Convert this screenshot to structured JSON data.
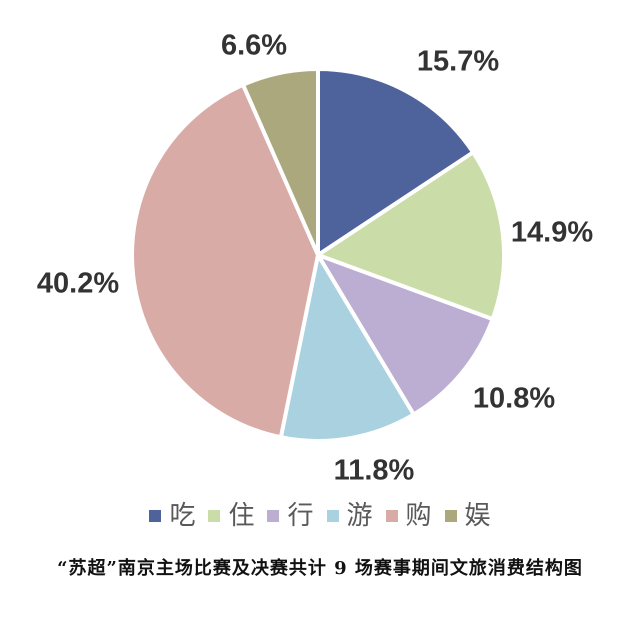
{
  "chart_data": {
    "type": "pie",
    "title": "“苏超”南京主场比赛及决赛共计 9 场赛事期间文旅消费结构图",
    "categories": [
      "吃",
      "住",
      "行",
      "游",
      "购",
      "娱"
    ],
    "values": [
      15.7,
      14.9,
      10.8,
      11.8,
      40.2,
      6.6
    ],
    "labels": [
      "15.7%",
      "14.9%",
      "10.8%",
      "11.8%",
      "40.2%",
      "6.6%"
    ],
    "colors": [
      "#4E639C",
      "#CADCA8",
      "#BCAED3",
      "#A9D1DF",
      "#D9ABA7",
      "#ABA87E"
    ],
    "start_angle_deg": 0,
    "direction": "clockwise",
    "slice_border_color": "#FFFFFF",
    "legend_position": "bottom",
    "legend_text_color": "#595959",
    "label_text_color": "#333333",
    "background_color": "#FFFFFF"
  }
}
